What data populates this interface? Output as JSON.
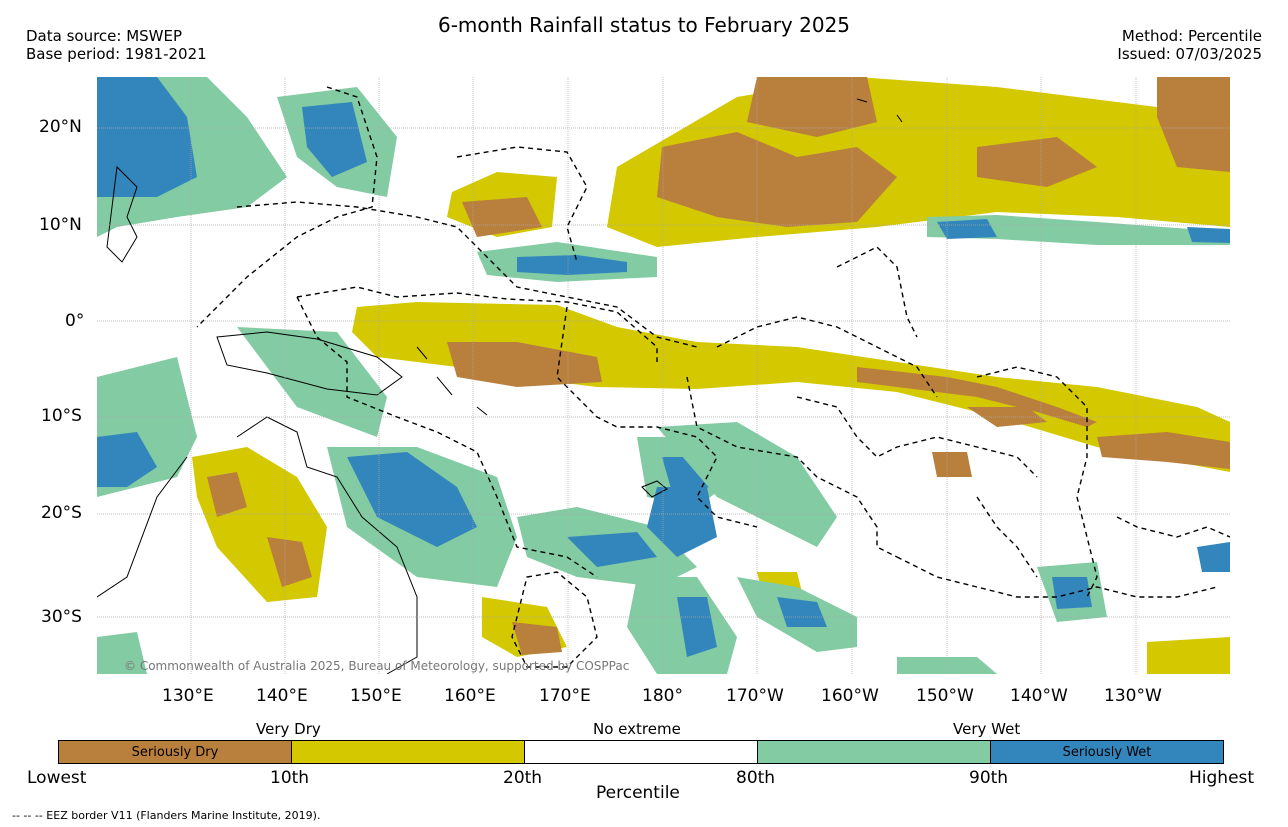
{
  "header": {
    "title": "6-month Rainfall status to February 2025",
    "data_source": "Data source: MSWEP",
    "base_period": "Base period: 1981-2021",
    "method": "Method: Percentile",
    "issued": "Issued: 07/03/2025"
  },
  "map": {
    "lat_labels": [
      "20°N",
      "10°N",
      "0°",
      "10°S",
      "20°S",
      "30°S"
    ],
    "lon_labels": [
      "130°E",
      "140°E",
      "150°E",
      "160°E",
      "170°E",
      "180°",
      "170°W",
      "160°W",
      "150°W",
      "140°W",
      "130°W"
    ],
    "copyright": "© Commonwealth of Australia 2025, Bureau of Meteorology, supported by COSPPac"
  },
  "legend": {
    "categories": {
      "very_dry": "Very Dry",
      "no_extreme": "No extreme",
      "very_wet": "Very Wet"
    },
    "bars": [
      {
        "label": "Seriously Dry",
        "color": "#b97f3c"
      },
      {
        "label": "",
        "color": "#d4c800"
      },
      {
        "label": "",
        "color": "#ffffff"
      },
      {
        "label": "",
        "color": "#82cba3"
      },
      {
        "label": "Seriously Wet",
        "color": "#3386bc"
      }
    ],
    "ticks": [
      "Lowest",
      "10th",
      "20th",
      "80th",
      "90th",
      "Highest"
    ],
    "axis_title": "Percentile"
  },
  "footnote": "--  --  -- EEZ border V11 (Flanders Marine Institute, 2019)."
}
